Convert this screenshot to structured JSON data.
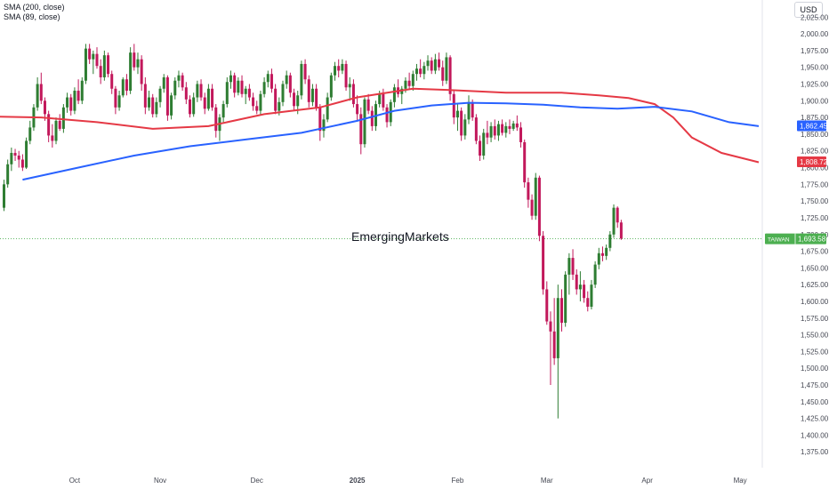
{
  "legend": {
    "sma200": "SMA (200, close)",
    "sma89": "SMA (89, close)"
  },
  "currency": "USD",
  "watermark": "EmergingMarkets",
  "colors": {
    "up": "#2e7d32",
    "down": "#c2185b",
    "sma200": "#e53945",
    "sma89": "#2962ff",
    "last": "#4caf50"
  },
  "chart_data": {
    "type": "candlestick",
    "title": "",
    "xlabel": "",
    "ylabel": "",
    "ylim": [
      1362,
      2040
    ],
    "grid": false,
    "yticks": [
      "2,025.00",
      "2,000.00",
      "1,975.00",
      "1,950.00",
      "1,925.00",
      "1,900.00",
      "1,875.00",
      "1,850.00",
      "1,825.00",
      "1,800.00",
      "1,775.00",
      "1,750.00",
      "1,725.00",
      "1,700.00",
      "1,675.00",
      "1,650.00",
      "1,625.00",
      "1,600.00",
      "1,575.00",
      "1,550.00",
      "1,525.00",
      "1,500.00",
      "1,475.00",
      "1,450.00",
      "1,425.00",
      "1,400.00",
      "1,375.00"
    ],
    "ytick_values": [
      2025,
      2000,
      1975,
      1950,
      1925,
      1900,
      1875,
      1850,
      1825,
      1800,
      1775,
      1750,
      1725,
      1700,
      1675,
      1650,
      1625,
      1600,
      1575,
      1550,
      1525,
      1500,
      1475,
      1450,
      1425,
      1400,
      1375
    ],
    "xticks": [
      {
        "label": "Oct",
        "bar": 19,
        "bold": false
      },
      {
        "label": "Nov",
        "bar": 42,
        "bold": false
      },
      {
        "label": "Dec",
        "bar": 68,
        "bold": false
      },
      {
        "label": "2025",
        "bar": 95,
        "bold": true
      },
      {
        "label": "Feb",
        "bar": 122,
        "bold": false
      },
      {
        "label": "Mar",
        "bar": 146,
        "bold": false
      },
      {
        "label": "Apr",
        "bar": 173,
        "bold": false
      },
      {
        "label": "May",
        "bar": 198,
        "bold": false
      }
    ],
    "ohlc": [
      [
        1740,
        1782,
        1735,
        1775
      ],
      [
        1775,
        1812,
        1770,
        1805
      ],
      [
        1805,
        1830,
        1795,
        1822
      ],
      [
        1822,
        1828,
        1810,
        1818
      ],
      [
        1818,
        1825,
        1800,
        1812
      ],
      [
        1812,
        1820,
        1795,
        1800
      ],
      [
        1800,
        1845,
        1798,
        1840
      ],
      [
        1840,
        1870,
        1835,
        1860
      ],
      [
        1860,
        1895,
        1855,
        1890
      ],
      [
        1890,
        1935,
        1885,
        1925
      ],
      [
        1925,
        1942,
        1895,
        1900
      ],
      [
        1900,
        1905,
        1870,
        1880
      ],
      [
        1880,
        1885,
        1838,
        1848
      ],
      [
        1848,
        1865,
        1830,
        1840
      ],
      [
        1840,
        1875,
        1835,
        1870
      ],
      [
        1870,
        1880,
        1855,
        1858
      ],
      [
        1858,
        1895,
        1852,
        1890
      ],
      [
        1890,
        1912,
        1882,
        1905
      ],
      [
        1905,
        1910,
        1878,
        1885
      ],
      [
        1885,
        1920,
        1880,
        1915
      ],
      [
        1915,
        1932,
        1895,
        1900
      ],
      [
        1900,
        1935,
        1895,
        1930
      ],
      [
        1930,
        1985,
        1925,
        1978
      ],
      [
        1978,
        1985,
        1955,
        1962
      ],
      [
        1962,
        1975,
        1940,
        1970
      ],
      [
        1970,
        1980,
        1948,
        1952
      ],
      [
        1952,
        1962,
        1925,
        1935
      ],
      [
        1935,
        1975,
        1930,
        1968
      ],
      [
        1968,
        1972,
        1935,
        1940
      ],
      [
        1940,
        1945,
        1910,
        1918
      ],
      [
        1918,
        1922,
        1880,
        1890
      ],
      [
        1890,
        1915,
        1885,
        1908
      ],
      [
        1908,
        1935,
        1905,
        1932
      ],
      [
        1932,
        1940,
        1908,
        1915
      ],
      [
        1915,
        1980,
        1910,
        1972
      ],
      [
        1972,
        1985,
        1945,
        1950
      ],
      [
        1950,
        1972,
        1940,
        1962
      ],
      [
        1962,
        1968,
        1915,
        1925
      ],
      [
        1925,
        1935,
        1880,
        1890
      ],
      [
        1890,
        1915,
        1885,
        1905
      ],
      [
        1905,
        1910,
        1875,
        1880
      ],
      [
        1880,
        1905,
        1875,
        1898
      ],
      [
        1898,
        1922,
        1890,
        1918
      ],
      [
        1918,
        1940,
        1912,
        1935
      ],
      [
        1935,
        1938,
        1870,
        1878
      ],
      [
        1878,
        1912,
        1872,
        1908
      ],
      [
        1908,
        1935,
        1902,
        1930
      ],
      [
        1930,
        1945,
        1920,
        1938
      ],
      [
        1938,
        1942,
        1915,
        1920
      ],
      [
        1920,
        1928,
        1895,
        1902
      ],
      [
        1902,
        1908,
        1875,
        1880
      ],
      [
        1880,
        1912,
        1876,
        1905
      ],
      [
        1905,
        1930,
        1898,
        1925
      ],
      [
        1925,
        1932,
        1900,
        1905
      ],
      [
        1905,
        1912,
        1880,
        1888
      ],
      [
        1888,
        1925,
        1885,
        1918
      ],
      [
        1918,
        1925,
        1885,
        1890
      ],
      [
        1890,
        1895,
        1845,
        1855
      ],
      [
        1855,
        1880,
        1840,
        1875
      ],
      [
        1875,
        1900,
        1868,
        1895
      ],
      [
        1895,
        1935,
        1890,
        1928
      ],
      [
        1928,
        1945,
        1918,
        1938
      ],
      [
        1938,
        1942,
        1905,
        1912
      ],
      [
        1912,
        1935,
        1908,
        1930
      ],
      [
        1930,
        1938,
        1905,
        1910
      ],
      [
        1910,
        1922,
        1895,
        1918
      ],
      [
        1918,
        1925,
        1900,
        1905
      ],
      [
        1905,
        1912,
        1885,
        1892
      ],
      [
        1892,
        1900,
        1880,
        1885
      ],
      [
        1885,
        1915,
        1878,
        1910
      ],
      [
        1910,
        1935,
        1905,
        1928
      ],
      [
        1928,
        1945,
        1920,
        1940
      ],
      [
        1940,
        1948,
        1912,
        1918
      ],
      [
        1918,
        1925,
        1880,
        1885
      ],
      [
        1885,
        1905,
        1878,
        1898
      ],
      [
        1898,
        1930,
        1892,
        1925
      ],
      [
        1925,
        1945,
        1918,
        1938
      ],
      [
        1938,
        1942,
        1905,
        1912
      ],
      [
        1912,
        1918,
        1885,
        1892
      ],
      [
        1892,
        1915,
        1880,
        1908
      ],
      [
        1908,
        1960,
        1902,
        1955
      ],
      [
        1955,
        1962,
        1925,
        1932
      ],
      [
        1932,
        1938,
        1890,
        1898
      ],
      [
        1898,
        1925,
        1892,
        1918
      ],
      [
        1918,
        1925,
        1885,
        1890
      ],
      [
        1890,
        1895,
        1840,
        1855
      ],
      [
        1855,
        1880,
        1845,
        1872
      ],
      [
        1872,
        1912,
        1868,
        1905
      ],
      [
        1905,
        1942,
        1900,
        1938
      ],
      [
        1938,
        1958,
        1930,
        1952
      ],
      [
        1952,
        1962,
        1935,
        1945
      ],
      [
        1945,
        1962,
        1940,
        1955
      ],
      [
        1955,
        1960,
        1915,
        1920
      ],
      [
        1920,
        1935,
        1900,
        1925
      ],
      [
        1925,
        1932,
        1890,
        1895
      ],
      [
        1895,
        1908,
        1870,
        1880
      ],
      [
        1880,
        1890,
        1820,
        1835
      ],
      [
        1835,
        1905,
        1830,
        1902
      ],
      [
        1902,
        1910,
        1880,
        1885
      ],
      [
        1885,
        1892,
        1855,
        1862
      ],
      [
        1862,
        1900,
        1855,
        1895
      ],
      [
        1895,
        1915,
        1890,
        1910
      ],
      [
        1910,
        1918,
        1885,
        1890
      ],
      [
        1890,
        1895,
        1860,
        1868
      ],
      [
        1868,
        1902,
        1862,
        1898
      ],
      [
        1898,
        1925,
        1890,
        1920
      ],
      [
        1920,
        1932,
        1905,
        1910
      ],
      [
        1910,
        1922,
        1895,
        1918
      ],
      [
        1918,
        1935,
        1912,
        1930
      ],
      [
        1930,
        1942,
        1918,
        1922
      ],
      [
        1922,
        1945,
        1915,
        1940
      ],
      [
        1940,
        1955,
        1930,
        1948
      ],
      [
        1948,
        1962,
        1935,
        1940
      ],
      [
        1940,
        1958,
        1932,
        1952
      ],
      [
        1952,
        1968,
        1945,
        1960
      ],
      [
        1960,
        1965,
        1940,
        1945
      ],
      [
        1945,
        1970,
        1940,
        1962
      ],
      [
        1962,
        1972,
        1945,
        1950
      ],
      [
        1950,
        1960,
        1922,
        1930
      ],
      [
        1930,
        1972,
        1925,
        1965
      ],
      [
        1965,
        1968,
        1900,
        1910
      ],
      [
        1910,
        1915,
        1865,
        1875
      ],
      [
        1875,
        1895,
        1855,
        1885
      ],
      [
        1885,
        1890,
        1840,
        1848
      ],
      [
        1848,
        1880,
        1842,
        1872
      ],
      [
        1872,
        1908,
        1865,
        1898
      ],
      [
        1898,
        1902,
        1870,
        1875
      ],
      [
        1875,
        1880,
        1835,
        1840
      ],
      [
        1840,
        1848,
        1810,
        1818
      ],
      [
        1818,
        1858,
        1812,
        1852
      ],
      [
        1852,
        1870,
        1835,
        1845
      ],
      [
        1845,
        1868,
        1838,
        1862
      ],
      [
        1862,
        1872,
        1842,
        1848
      ],
      [
        1848,
        1870,
        1840,
        1865
      ],
      [
        1865,
        1872,
        1848,
        1852
      ],
      [
        1852,
        1868,
        1845,
        1862
      ],
      [
        1862,
        1872,
        1850,
        1858
      ],
      [
        1858,
        1870,
        1855,
        1866
      ],
      [
        1866,
        1878,
        1855,
        1860
      ],
      [
        1860,
        1868,
        1830,
        1838
      ],
      [
        1838,
        1842,
        1770,
        1778
      ],
      [
        1778,
        1785,
        1740,
        1752
      ],
      [
        1752,
        1760,
        1722,
        1728
      ],
      [
        1728,
        1792,
        1722,
        1785
      ],
      [
        1785,
        1788,
        1690,
        1698
      ],
      [
        1698,
        1705,
        1610,
        1618
      ],
      [
        1618,
        1630,
        1565,
        1570
      ],
      [
        1570,
        1585,
        1475,
        1555
      ],
      [
        1555,
        1605,
        1505,
        1515
      ],
      [
        1515,
        1625,
        1425,
        1605
      ],
      [
        1605,
        1618,
        1555,
        1568
      ],
      [
        1568,
        1645,
        1562,
        1640
      ],
      [
        1640,
        1672,
        1610,
        1665
      ],
      [
        1665,
        1678,
        1632,
        1640
      ],
      [
        1640,
        1648,
        1610,
        1618
      ],
      [
        1618,
        1645,
        1600,
        1625
      ],
      [
        1625,
        1632,
        1598,
        1605
      ],
      [
        1605,
        1615,
        1585,
        1592
      ],
      [
        1592,
        1632,
        1588,
        1625
      ],
      [
        1625,
        1660,
        1620,
        1655
      ],
      [
        1655,
        1680,
        1648,
        1672
      ],
      [
        1672,
        1682,
        1660,
        1668
      ],
      [
        1668,
        1685,
        1662,
        1680
      ],
      [
        1680,
        1705,
        1675,
        1700
      ],
      [
        1700,
        1745,
        1695,
        1740
      ],
      [
        1740,
        1742,
        1710,
        1718
      ],
      [
        1718,
        1722,
        1692,
        1694
      ]
    ],
    "sma89_path": [
      [
        5,
        1782
      ],
      [
        20,
        1800
      ],
      [
        35,
        1818
      ],
      [
        50,
        1832
      ],
      [
        65,
        1842
      ],
      [
        80,
        1852
      ],
      [
        95,
        1870
      ],
      [
        105,
        1885
      ],
      [
        115,
        1893
      ],
      [
        125,
        1897
      ],
      [
        135,
        1896
      ],
      [
        145,
        1894
      ],
      [
        155,
        1890
      ],
      [
        165,
        1888
      ],
      [
        175,
        1891
      ],
      [
        185,
        1884
      ],
      [
        195,
        1868
      ],
      [
        203,
        1862
      ]
    ],
    "sma200_path": [
      [
        -10,
        1877
      ],
      [
        10,
        1875
      ],
      [
        25,
        1868
      ],
      [
        40,
        1858
      ],
      [
        55,
        1862
      ],
      [
        70,
        1880
      ],
      [
        85,
        1890
      ],
      [
        95,
        1905
      ],
      [
        110,
        1918
      ],
      [
        120,
        1916
      ],
      [
        135,
        1912
      ],
      [
        150,
        1912
      ],
      [
        160,
        1908
      ],
      [
        168,
        1904
      ],
      [
        175,
        1895
      ],
      [
        180,
        1875
      ],
      [
        185,
        1845
      ],
      [
        193,
        1822
      ],
      [
        203,
        1808
      ]
    ],
    "last_value": 1693.58,
    "price_labels": [
      {
        "name": "sma89",
        "text": "1,862.45",
        "value": 1862.45
      },
      {
        "name": "sma200",
        "text": "1,808.72",
        "value": 1808.72
      }
    ],
    "last_label": {
      "tag": "TAIWAN",
      "text": "1,693.58"
    }
  }
}
